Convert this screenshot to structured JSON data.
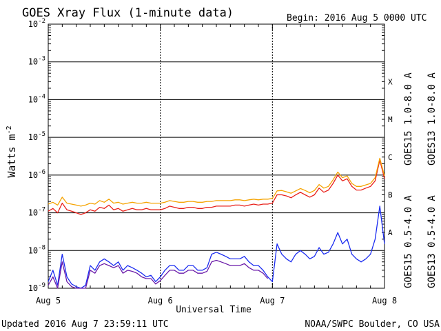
{
  "header": {
    "title": "GOES Xray Flux (1-minute data)",
    "begin": "Begin:  2016 Aug 5 0000 UTC"
  },
  "footer": {
    "updated": "Updated 2016 Aug  7 23:59:11 UTC",
    "credit": "NOAA/SWPC Boulder, CO USA"
  },
  "colors": {
    "goes15_long": "#e8201a",
    "goes13_long": "#f5a300",
    "goes15_short": "#1a2bf0",
    "goes13_short": "#6a1aa8",
    "grid": "#000000"
  },
  "chart_data": {
    "type": "line",
    "title": "GOES Xray Flux (1-minute data)",
    "xlabel": "Universal Time",
    "ylabel": "Watts m^-2",
    "ylabel_main": "Watts m",
    "ylabel_sup": "-2",
    "yscale": "log",
    "ylim": [
      1e-09,
      0.01
    ],
    "y_ticks": [
      {
        "value": 1e-09,
        "base": "10",
        "exp": "-9"
      },
      {
        "value": 1e-08,
        "base": "10",
        "exp": "-8"
      },
      {
        "value": 1e-07,
        "base": "10",
        "exp": "-7"
      },
      {
        "value": 1e-06,
        "base": "10",
        "exp": "-6"
      },
      {
        "value": 1e-05,
        "base": "10",
        "exp": "-5"
      },
      {
        "value": 0.0001,
        "base": "10",
        "exp": "-4"
      },
      {
        "value": 0.001,
        "base": "10",
        "exp": "-3"
      },
      {
        "value": 0.01,
        "base": "10",
        "exp": "-2"
      }
    ],
    "xlim": [
      0,
      72
    ],
    "x_unit": "hours since 2016 Aug 5 0000 UTC",
    "x_ticks": [
      {
        "value": 0,
        "label": "Aug 5"
      },
      {
        "value": 24,
        "label": "Aug 6"
      },
      {
        "value": 48,
        "label": "Aug 7"
      },
      {
        "value": 72,
        "label": "Aug 8"
      }
    ],
    "flare_classes": [
      {
        "label": "A",
        "value": 3e-08
      },
      {
        "label": "B",
        "value": 3e-07
      },
      {
        "label": "C",
        "value": 3e-06
      },
      {
        "label": "M",
        "value": 3e-05
      },
      {
        "label": "X",
        "value": 0.0003
      }
    ],
    "grid": true,
    "legend_position": "right, vertical",
    "series": [
      {
        "name": "GOES15 1.0-8.0 A",
        "color": "#e8201a",
        "x": [
          0,
          1,
          2,
          3,
          4,
          5,
          6,
          7,
          8,
          9,
          10,
          11,
          12,
          13,
          14,
          15,
          16,
          17,
          18,
          19,
          20,
          21,
          22,
          23,
          24,
          25,
          26,
          27,
          28,
          29,
          30,
          31,
          32,
          33,
          34,
          35,
          36,
          37,
          38,
          39,
          40,
          41,
          42,
          43,
          44,
          45,
          46,
          47,
          48,
          49,
          50,
          51,
          52,
          53,
          54,
          55,
          56,
          57,
          58,
          59,
          60,
          61,
          62,
          63,
          64,
          65,
          66,
          67,
          68,
          69,
          70,
          71,
          72
        ],
        "y": [
          1.1e-07,
          1.3e-07,
          1e-07,
          1.8e-07,
          1.2e-07,
          1.1e-07,
          1e-07,
          9e-08,
          1e-07,
          1.2e-07,
          1.1e-07,
          1.4e-07,
          1.3e-07,
          1.6e-07,
          1.2e-07,
          1.3e-07,
          1.1e-07,
          1.2e-07,
          1.3e-07,
          1.2e-07,
          1.2e-07,
          1.3e-07,
          1.2e-07,
          1.2e-07,
          1.2e-07,
          1.3e-07,
          1.5e-07,
          1.4e-07,
          1.3e-07,
          1.3e-07,
          1.4e-07,
          1.4e-07,
          1.3e-07,
          1.3e-07,
          1.4e-07,
          1.4e-07,
          1.5e-07,
          1.5e-07,
          1.5e-07,
          1.5e-07,
          1.6e-07,
          1.6e-07,
          1.5e-07,
          1.6e-07,
          1.7e-07,
          1.6e-07,
          1.7e-07,
          1.7e-07,
          1.8e-07,
          3e-07,
          3e-07,
          2.8e-07,
          2.5e-07,
          3e-07,
          3.5e-07,
          3e-07,
          2.6e-07,
          3e-07,
          4.5e-07,
          3.5e-07,
          4e-07,
          6e-07,
          1e-06,
          7e-07,
          8e-07,
          5e-07,
          4e-07,
          4e-07,
          4.5e-07,
          5e-07,
          7e-07,
          2.5e-06,
          8e-07
        ]
      },
      {
        "name": "GOES13 1.0-8.0 A",
        "color": "#f5a300",
        "x": [
          0,
          1,
          2,
          3,
          4,
          5,
          6,
          7,
          8,
          9,
          10,
          11,
          12,
          13,
          14,
          15,
          16,
          17,
          18,
          19,
          20,
          21,
          22,
          23,
          24,
          25,
          26,
          27,
          28,
          29,
          30,
          31,
          32,
          33,
          34,
          35,
          36,
          37,
          38,
          39,
          40,
          41,
          42,
          43,
          44,
          45,
          46,
          47,
          48,
          49,
          50,
          51,
          52,
          53,
          54,
          55,
          56,
          57,
          58,
          59,
          60,
          61,
          62,
          63,
          64,
          65,
          66,
          67,
          68,
          69,
          70,
          71,
          72
        ],
        "y": [
          1.7e-07,
          1.9e-07,
          1.6e-07,
          2.6e-07,
          1.8e-07,
          1.7e-07,
          1.6e-07,
          1.5e-07,
          1.6e-07,
          1.8e-07,
          1.7e-07,
          2.1e-07,
          1.9e-07,
          2.3e-07,
          1.8e-07,
          1.9e-07,
          1.7e-07,
          1.8e-07,
          1.9e-07,
          1.8e-07,
          1.8e-07,
          1.9e-07,
          1.8e-07,
          1.8e-07,
          1.8e-07,
          1.9e-07,
          2.1e-07,
          2e-07,
          1.9e-07,
          1.9e-07,
          2e-07,
          2e-07,
          1.9e-07,
          1.9e-07,
          2e-07,
          2e-07,
          2.1e-07,
          2.1e-07,
          2.1e-07,
          2.1e-07,
          2.2e-07,
          2.2e-07,
          2.1e-07,
          2.2e-07,
          2.3e-07,
          2.2e-07,
          2.3e-07,
          2.3e-07,
          2.4e-07,
          3.8e-07,
          3.9e-07,
          3.6e-07,
          3.3e-07,
          3.8e-07,
          4.4e-07,
          3.9e-07,
          3.4e-07,
          3.9e-07,
          5.6e-07,
          4.5e-07,
          5e-07,
          7.5e-07,
          1.2e-06,
          8.5e-07,
          9.5e-07,
          6e-07,
          5e-07,
          5e-07,
          5.5e-07,
          6e-07,
          8.5e-07,
          2.8e-06,
          9.5e-07
        ]
      },
      {
        "name": "GOES15 0.5-4.0 A",
        "color": "#1a2bf0",
        "x": [
          0,
          1,
          2,
          3,
          4,
          5,
          6,
          7,
          8,
          9,
          10,
          11,
          12,
          13,
          14,
          15,
          16,
          17,
          18,
          19,
          20,
          21,
          22,
          23,
          24,
          25,
          26,
          27,
          28,
          29,
          30,
          31,
          32,
          33,
          34,
          35,
          36,
          37,
          38,
          39,
          40,
          41,
          42,
          43,
          44,
          45,
          46,
          47,
          48,
          49,
          50,
          51,
          52,
          53,
          54,
          55,
          56,
          57,
          58,
          59,
          60,
          61,
          62,
          63,
          64,
          65,
          66,
          67,
          68,
          69,
          70,
          71,
          72
        ],
        "y": [
          1.5e-09,
          3e-09,
          1.2e-09,
          8e-09,
          2e-09,
          1.3e-09,
          1.1e-09,
          1e-09,
          1.2e-09,
          4e-09,
          3e-09,
          5e-09,
          6e-09,
          5e-09,
          4e-09,
          5e-09,
          3e-09,
          4e-09,
          3.5e-09,
          3e-09,
          2.5e-09,
          2e-09,
          2.2e-09,
          1.5e-09,
          2e-09,
          3e-09,
          4e-09,
          4e-09,
          3e-09,
          3e-09,
          4e-09,
          4e-09,
          3e-09,
          3e-09,
          3.5e-09,
          8e-09,
          9e-09,
          8e-09,
          7e-09,
          6e-09,
          6e-09,
          6e-09,
          7e-09,
          5e-09,
          4e-09,
          4e-09,
          3e-09,
          2e-09,
          1.5e-09,
          1.5e-08,
          8e-09,
          6e-09,
          5e-09,
          8e-09,
          1e-08,
          8e-09,
          6e-09,
          7e-09,
          1.2e-08,
          8e-09,
          9e-09,
          1.5e-08,
          3e-08,
          1.5e-08,
          2e-08,
          8e-09,
          6e-09,
          5e-09,
          6e-09,
          8e-09,
          2e-08,
          1.5e-07,
          1.5e-08
        ]
      },
      {
        "name": "GOES13 0.5-4.0 A",
        "color": "#6a1aa8",
        "x": [
          0,
          1,
          2,
          3,
          4,
          5,
          6,
          7,
          8,
          9,
          10,
          11,
          12,
          13,
          14,
          15,
          16,
          17,
          18,
          19,
          20,
          21,
          22,
          23,
          24,
          25,
          26,
          27,
          28,
          29,
          30,
          31,
          32,
          33,
          34,
          35,
          36,
          37,
          38,
          39,
          40,
          41,
          42,
          43,
          44,
          45,
          46,
          47
        ],
        "y": [
          1.2e-09,
          2e-09,
          1e-09,
          5e-09,
          1.5e-09,
          1.1e-09,
          1e-09,
          1e-09,
          1e-09,
          3e-09,
          2.5e-09,
          4e-09,
          4.5e-09,
          4e-09,
          3.5e-09,
          4e-09,
          2.5e-09,
          3e-09,
          2.8e-09,
          2.5e-09,
          2e-09,
          1.8e-09,
          1.8e-09,
          1.3e-09,
          1.6e-09,
          2.2e-09,
          3e-09,
          3e-09,
          2.5e-09,
          2.5e-09,
          3e-09,
          3e-09,
          2.5e-09,
          2.5e-09,
          2.8e-09,
          5e-09,
          5.5e-09,
          5e-09,
          4.5e-09,
          4e-09,
          4e-09,
          4e-09,
          4.5e-09,
          3.5e-09,
          3e-09,
          3e-09,
          2.5e-09,
          1.8e-09
        ]
      }
    ]
  }
}
